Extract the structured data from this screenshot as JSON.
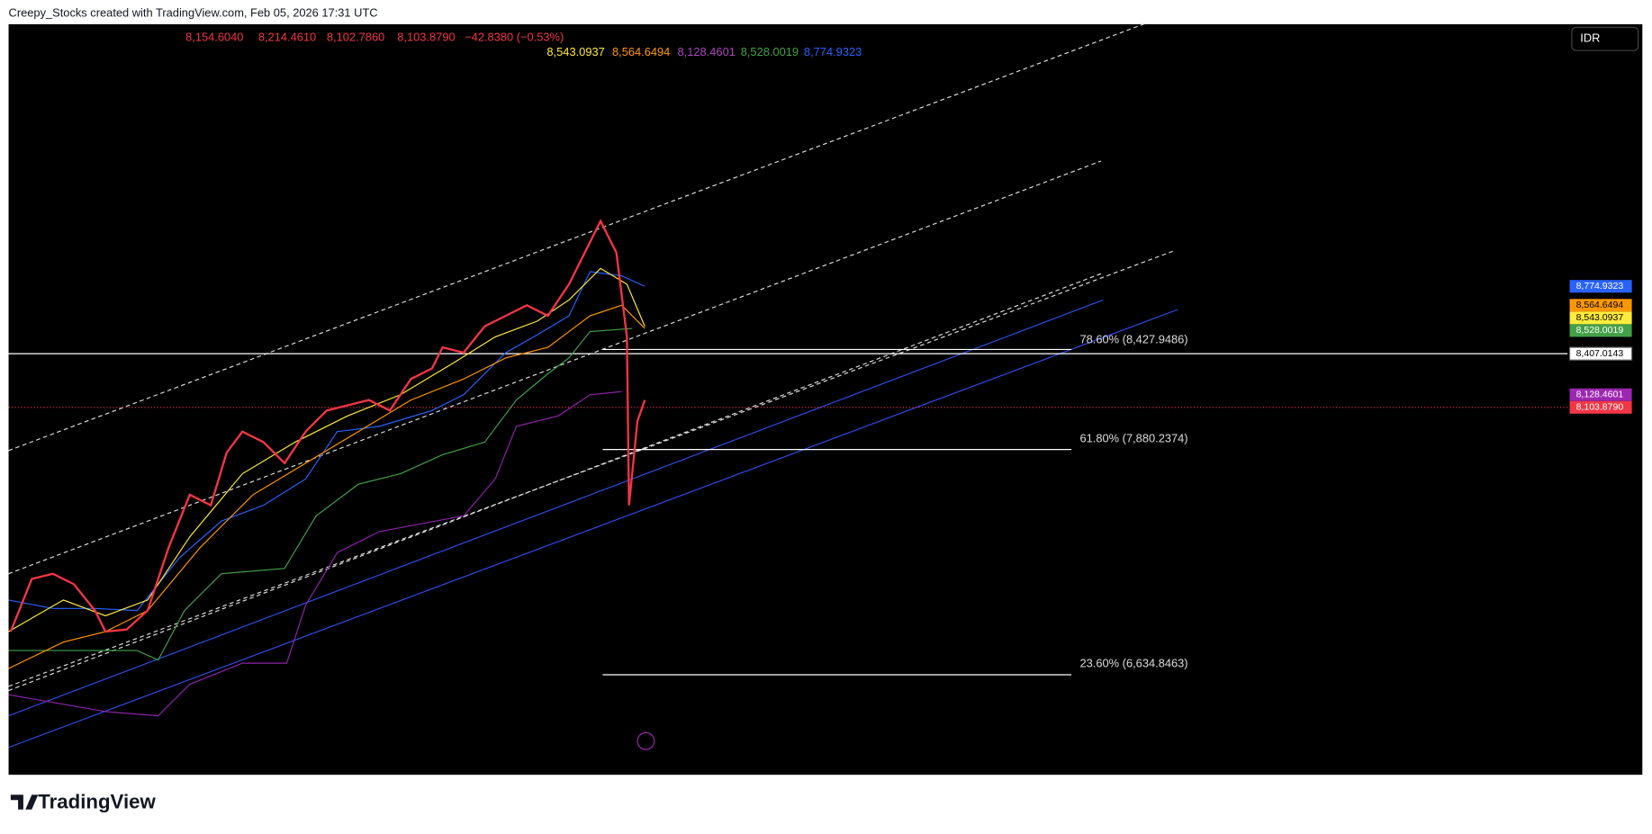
{
  "header": {
    "attribution": "Creepy_Stocks created with TradingView.com, Feb 05, 2026 17:31 UTC"
  },
  "legend": {
    "ohlc": [
      "8,154.6040",
      "8,214.4610",
      "8,102.7860",
      "8,103.8790",
      "−42.8380 (−0.53%)"
    ],
    "indicators": [
      "8,543.0937",
      "8,564.6494",
      "8,128.4601",
      "8,528.0019",
      "8,774.9323"
    ]
  },
  "currency": "IDR",
  "price_labels": [
    "8,774.9323",
    "8,564.6494",
    "8,543.0937",
    "8,528.0019",
    "8,407.0143",
    "8,128.4601",
    "8,103.8790"
  ],
  "fib_levels": [
    "78.60% (8,427.9486)",
    "61.80% (7,880.2374)",
    "23.60% (6,634.8463)"
  ],
  "brand": "TradingView"
}
